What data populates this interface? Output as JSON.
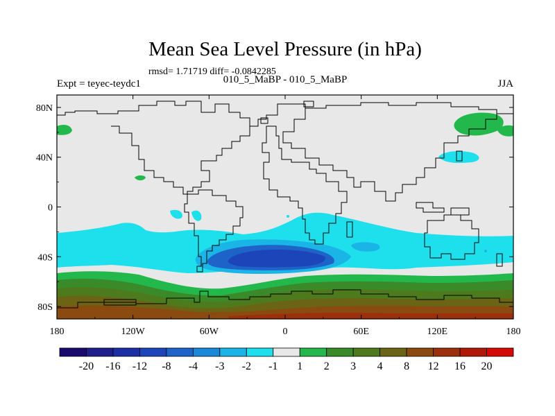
{
  "chart_data": {
    "type": "heatmap",
    "title": "Mean Sea Level Pressure (in hPa)",
    "stats_text": "rmsd= 1.71719 diff= -0.0842285",
    "left_label": "Expt = teyec-teydc1",
    "center_label": "010_5_MaBP - 010_5_MaBP",
    "right_label": "JJA",
    "xlim": [
      -180,
      180
    ],
    "ylim": [
      -90,
      90
    ],
    "x_ticks": [
      {
        "value": -180,
        "label": "180"
      },
      {
        "value": -120,
        "label": "120W"
      },
      {
        "value": -60,
        "label": "60W"
      },
      {
        "value": 0,
        "label": "0"
      },
      {
        "value": 60,
        "label": "60E"
      },
      {
        "value": 120,
        "label": "120E"
      },
      {
        "value": 180,
        "label": "180"
      }
    ],
    "y_ticks": [
      {
        "value": 80,
        "label": "80N"
      },
      {
        "value": 40,
        "label": "40N"
      },
      {
        "value": 0,
        "label": "0"
      },
      {
        "value": -40,
        "label": "40S"
      },
      {
        "value": -80,
        "label": "80S"
      }
    ],
    "colorbar": {
      "levels": [
        {
          "value": -20,
          "label": "-20"
        },
        {
          "value": -16,
          "label": "-16"
        },
        {
          "value": -12,
          "label": "-12"
        },
        {
          "value": -8,
          "label": "-8"
        },
        {
          "value": -4,
          "label": "-4"
        },
        {
          "value": -3,
          "label": "-3"
        },
        {
          "value": -2,
          "label": "-2"
        },
        {
          "value": -1,
          "label": "-1"
        },
        {
          "value": 1,
          "label": "1"
        },
        {
          "value": 2,
          "label": "2"
        },
        {
          "value": 3,
          "label": "3"
        },
        {
          "value": 4,
          "label": "4"
        },
        {
          "value": 8,
          "label": "8"
        },
        {
          "value": 12,
          "label": "12"
        },
        {
          "value": 16,
          "label": "16"
        },
        {
          "value": 20,
          "label": "20"
        }
      ],
      "colors": [
        "#1a0a6e",
        "#1e1e8c",
        "#1c2ea4",
        "#1b45b8",
        "#1e63c8",
        "#1a8ad8",
        "#1ab4e6",
        "#1ee0ec",
        "#e8e8e8",
        "#22b84c",
        "#3a8a2a",
        "#4e7a1e",
        "#6a6414",
        "#8a4a10",
        "#9c300c",
        "#b01808",
        "#d40a06"
      ]
    },
    "fields": {
      "background_value": 0,
      "bands": [
        {
          "from_lat": -29,
          "to_lat": -48,
          "value": -1.5
        },
        {
          "from_lat": -52,
          "to_lat": -60,
          "value": 1.5
        },
        {
          "from_lat": -60,
          "to_lat": -67,
          "value": 2.5
        },
        {
          "from_lat": -67,
          "to_lat": -72,
          "value": 3.5
        },
        {
          "from_lat": -72,
          "to_lat": -78,
          "value": 6
        },
        {
          "from_lat": -78,
          "to_lat": -90,
          "value": 10
        }
      ],
      "features": [
        {
          "lon": -40,
          "lat": -42,
          "value": -2.5,
          "note": "South Atlantic low"
        },
        {
          "lon": -35,
          "lat": -43,
          "value": -3.5,
          "note": "South Atlantic low core"
        },
        {
          "lon": 60,
          "lat": -32,
          "value": -2.5,
          "note": "Indian Ocean low"
        },
        {
          "lon": 150,
          "lat": 63,
          "value": 1.5,
          "note": "NE Pacific high"
        },
        {
          "lon": -170,
          "lat": 60,
          "value": 1.5,
          "note": "Bering high"
        },
        {
          "lon": -120,
          "lat": 20,
          "value": 1.5,
          "note": "E Pacific small high"
        },
        {
          "lon": 145,
          "lat": 37,
          "value": -1.5,
          "note": "NW Pacific low"
        }
      ]
    }
  }
}
